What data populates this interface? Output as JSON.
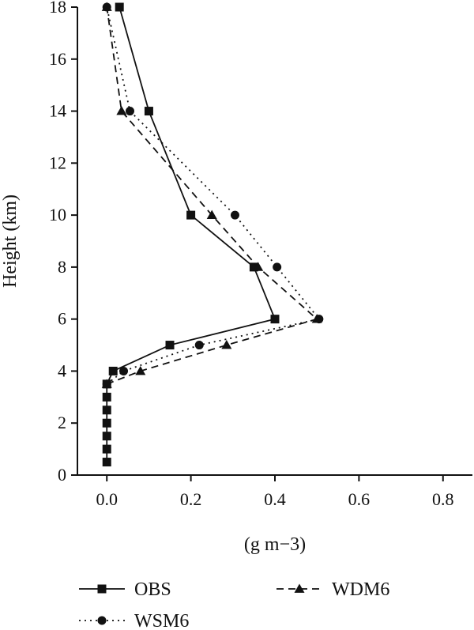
{
  "chart_data": {
    "type": "line",
    "xlabel": "(g m−3)",
    "ylabel": "Height (km)",
    "xlim": [
      -0.07,
      0.87
    ],
    "ylim": [
      0,
      18
    ],
    "xticks": [
      "0.0",
      "0.2",
      "0.4",
      "0.6",
      "0.8"
    ],
    "xtick_values": [
      0,
      0.2,
      0.4,
      0.6,
      0.8
    ],
    "yticks": [
      "0",
      "2",
      "4",
      "6",
      "8",
      "10",
      "12",
      "14",
      "16",
      "18"
    ],
    "ytick_values": [
      0,
      2,
      4,
      6,
      8,
      10,
      12,
      14,
      16,
      18
    ],
    "grid": false,
    "legend_position": "bottom",
    "series": [
      {
        "name": "OBS",
        "marker": "square",
        "line_style": "solid",
        "color": "#111111",
        "x": [
          0,
          0,
          0,
          0,
          0,
          0,
          0,
          0.015,
          0.15,
          0.4,
          0.35,
          0.2,
          0.1,
          0.03
        ],
        "y": [
          0.5,
          1,
          1.5,
          2,
          2.5,
          3,
          3.5,
          4,
          5,
          6,
          8,
          10,
          14,
          18
        ]
      },
      {
        "name": "WDM6",
        "marker": "triangle",
        "line_style": "dashed",
        "color": "#111111",
        "x": [
          0,
          0.08,
          0.285,
          0.5,
          0.36,
          0.25,
          0.035,
          0
        ],
        "y": [
          3.5,
          4,
          5,
          6,
          8,
          10,
          14,
          18
        ]
      },
      {
        "name": "WSM6",
        "marker": "circle",
        "line_style": "dotted",
        "color": "#111111",
        "x": [
          0,
          0.04,
          0.22,
          0.505,
          0.405,
          0.305,
          0.055,
          0
        ],
        "y": [
          3.5,
          4,
          5,
          6,
          8,
          10,
          14,
          18
        ]
      }
    ]
  }
}
